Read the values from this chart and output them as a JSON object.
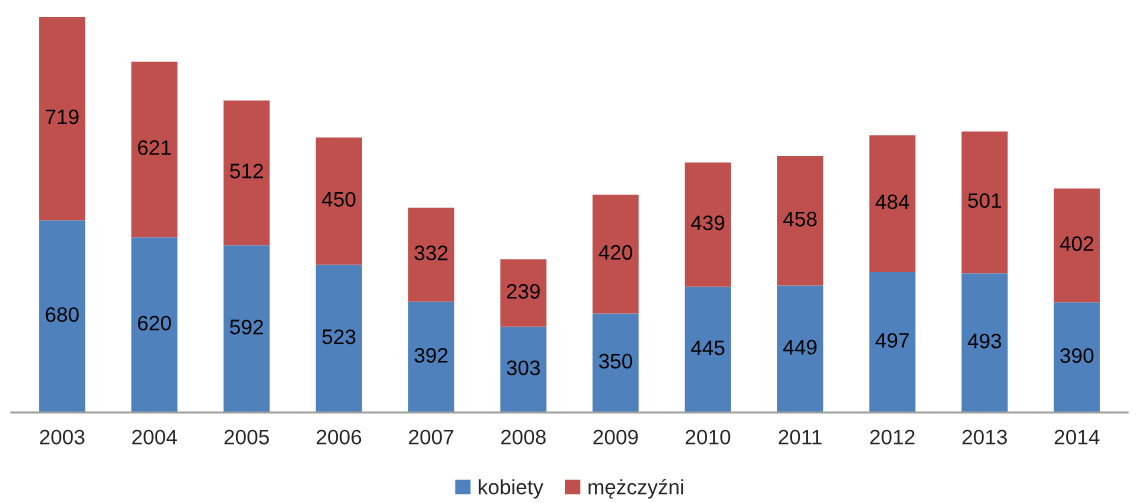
{
  "chart_data": {
    "type": "bar",
    "stacked": true,
    "data_labels": true,
    "grid": false,
    "legend": "bottom",
    "categories": [
      "2003",
      "2004",
      "2005",
      "2006",
      "2007",
      "2008",
      "2009",
      "2010",
      "2011",
      "2012",
      "2013",
      "2014"
    ],
    "series": [
      {
        "name": "kobiety",
        "color": "#4f81bd",
        "values": [
          680,
          620,
          592,
          523,
          392,
          303,
          350,
          445,
          449,
          497,
          493,
          390
        ]
      },
      {
        "name": "mężczyźni",
        "color": "#c0504d",
        "values": [
          719,
          621,
          512,
          450,
          332,
          239,
          420,
          439,
          458,
          484,
          501,
          402
        ]
      }
    ]
  }
}
